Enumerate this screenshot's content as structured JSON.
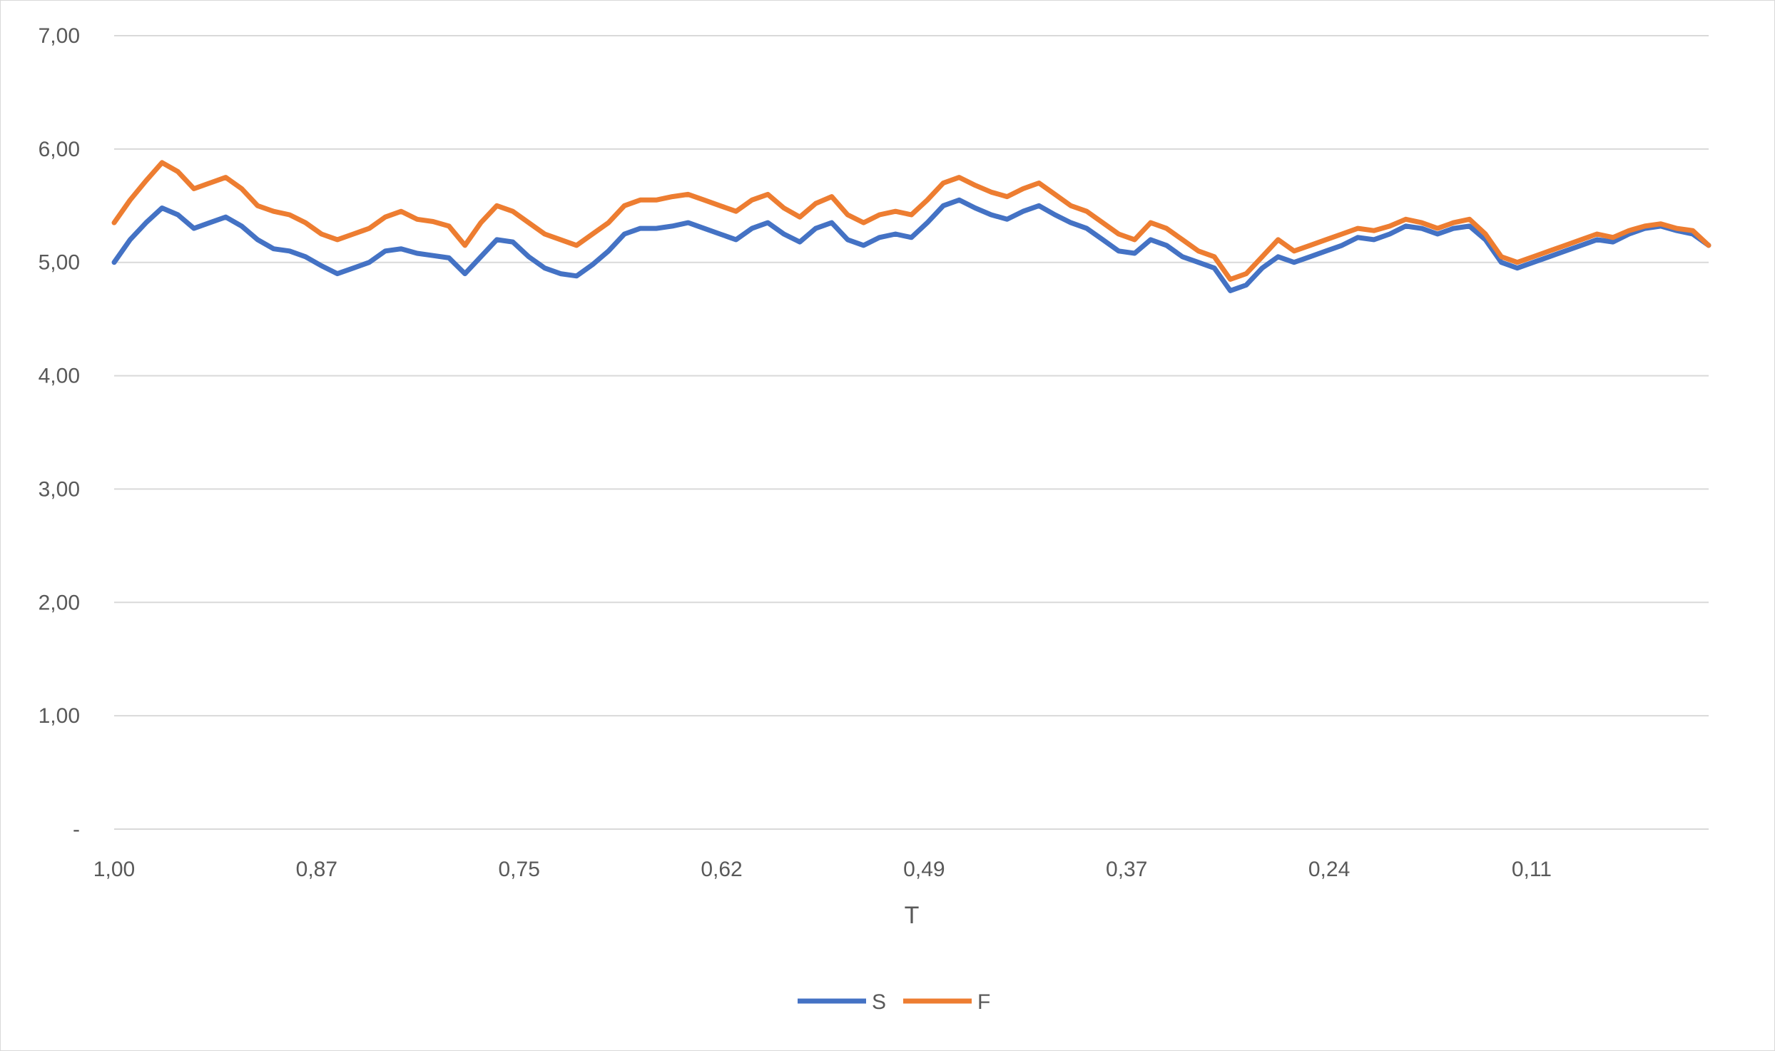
{
  "chart_data": {
    "type": "line",
    "xlabel": "T",
    "ylabel": "",
    "title": "",
    "ylim": [
      0,
      7
    ],
    "yticks": [
      {
        "value": 0,
        "label": "-"
      },
      {
        "value": 1,
        "label": "1,00"
      },
      {
        "value": 2,
        "label": "2,00"
      },
      {
        "value": 3,
        "label": "3,00"
      },
      {
        "value": 4,
        "label": "4,00"
      },
      {
        "value": 5,
        "label": "5,00"
      },
      {
        "value": 6,
        "label": "6,00"
      },
      {
        "value": 7,
        "label": "7,00"
      }
    ],
    "xlim": [
      1.0,
      0.0
    ],
    "xticks": [
      {
        "value": 1.0,
        "label": "1,00"
      },
      {
        "value": 0.873,
        "label": "0,87"
      },
      {
        "value": 0.746,
        "label": "0,75"
      },
      {
        "value": 0.619,
        "label": "0,62"
      },
      {
        "value": 0.492,
        "label": "0,49"
      },
      {
        "value": 0.365,
        "label": "0,37"
      },
      {
        "value": 0.238,
        "label": "0,24"
      },
      {
        "value": 0.111,
        "label": "0,11"
      }
    ],
    "grid": true,
    "legend_position": "bottom",
    "x": [
      1.0,
      0.99,
      0.98,
      0.97,
      0.96,
      0.95,
      0.94,
      0.93,
      0.92,
      0.91,
      0.9,
      0.89,
      0.88,
      0.87,
      0.86,
      0.85,
      0.84,
      0.83,
      0.82,
      0.81,
      0.8,
      0.79,
      0.78,
      0.77,
      0.76,
      0.75,
      0.74,
      0.73,
      0.72,
      0.71,
      0.7,
      0.69,
      0.68,
      0.67,
      0.66,
      0.65,
      0.64,
      0.63,
      0.62,
      0.61,
      0.6,
      0.59,
      0.58,
      0.57,
      0.56,
      0.55,
      0.54,
      0.53,
      0.52,
      0.51,
      0.5,
      0.49,
      0.48,
      0.47,
      0.46,
      0.45,
      0.44,
      0.43,
      0.42,
      0.41,
      0.4,
      0.39,
      0.38,
      0.37,
      0.36,
      0.35,
      0.34,
      0.33,
      0.32,
      0.31,
      0.3,
      0.29,
      0.28,
      0.27,
      0.26,
      0.25,
      0.24,
      0.23,
      0.22,
      0.21,
      0.2,
      0.19,
      0.18,
      0.17,
      0.16,
      0.15,
      0.14,
      0.13,
      0.12,
      0.11,
      0.1,
      0.09,
      0.08,
      0.07,
      0.06,
      0.05,
      0.04,
      0.03,
      0.02,
      0.01,
      0.0
    ],
    "series": [
      {
        "name": "S",
        "color": "#4472c4",
        "values": [
          5.0,
          5.2,
          5.35,
          5.48,
          5.42,
          5.3,
          5.35,
          5.4,
          5.32,
          5.2,
          5.12,
          5.1,
          5.05,
          4.97,
          4.9,
          4.95,
          5.0,
          5.1,
          5.12,
          5.08,
          5.06,
          5.04,
          4.9,
          5.05,
          5.2,
          5.18,
          5.05,
          4.95,
          4.9,
          4.88,
          4.98,
          5.1,
          5.25,
          5.3,
          5.3,
          5.32,
          5.35,
          5.3,
          5.25,
          5.2,
          5.3,
          5.35,
          5.25,
          5.18,
          5.3,
          5.35,
          5.2,
          5.15,
          5.22,
          5.25,
          5.22,
          5.35,
          5.5,
          5.55,
          5.48,
          5.42,
          5.38,
          5.45,
          5.5,
          5.42,
          5.35,
          5.3,
          5.2,
          5.1,
          5.08,
          5.2,
          5.15,
          5.05,
          5.0,
          4.95,
          4.75,
          4.8,
          4.95,
          5.05,
          5.0,
          5.05,
          5.1,
          5.15,
          5.22,
          5.2,
          5.25,
          5.32,
          5.3,
          5.25,
          5.3,
          5.32,
          5.2,
          5.0,
          4.95,
          5.0,
          5.05,
          5.1,
          5.15,
          5.2,
          5.18,
          5.25,
          5.3,
          5.32,
          5.28,
          5.25,
          5.15
        ]
      },
      {
        "name": "F",
        "color": "#ed7d31",
        "values": [
          5.35,
          5.55,
          5.72,
          5.88,
          5.8,
          5.65,
          5.7,
          5.75,
          5.65,
          5.5,
          5.45,
          5.42,
          5.35,
          5.25,
          5.2,
          5.25,
          5.3,
          5.4,
          5.45,
          5.38,
          5.36,
          5.32,
          5.15,
          5.35,
          5.5,
          5.45,
          5.35,
          5.25,
          5.2,
          5.15,
          5.25,
          5.35,
          5.5,
          5.55,
          5.55,
          5.58,
          5.6,
          5.55,
          5.5,
          5.45,
          5.55,
          5.6,
          5.48,
          5.4,
          5.52,
          5.58,
          5.42,
          5.35,
          5.42,
          5.45,
          5.42,
          5.55,
          5.7,
          5.75,
          5.68,
          5.62,
          5.58,
          5.65,
          5.7,
          5.6,
          5.5,
          5.45,
          5.35,
          5.25,
          5.2,
          5.35,
          5.3,
          5.2,
          5.1,
          5.05,
          4.85,
          4.9,
          5.05,
          5.2,
          5.1,
          5.15,
          5.2,
          5.25,
          5.3,
          5.28,
          5.32,
          5.38,
          5.35,
          5.3,
          5.35,
          5.38,
          5.25,
          5.05,
          5.0,
          5.05,
          5.1,
          5.15,
          5.2,
          5.25,
          5.22,
          5.28,
          5.32,
          5.34,
          5.3,
          5.28,
          5.15
        ]
      }
    ]
  }
}
